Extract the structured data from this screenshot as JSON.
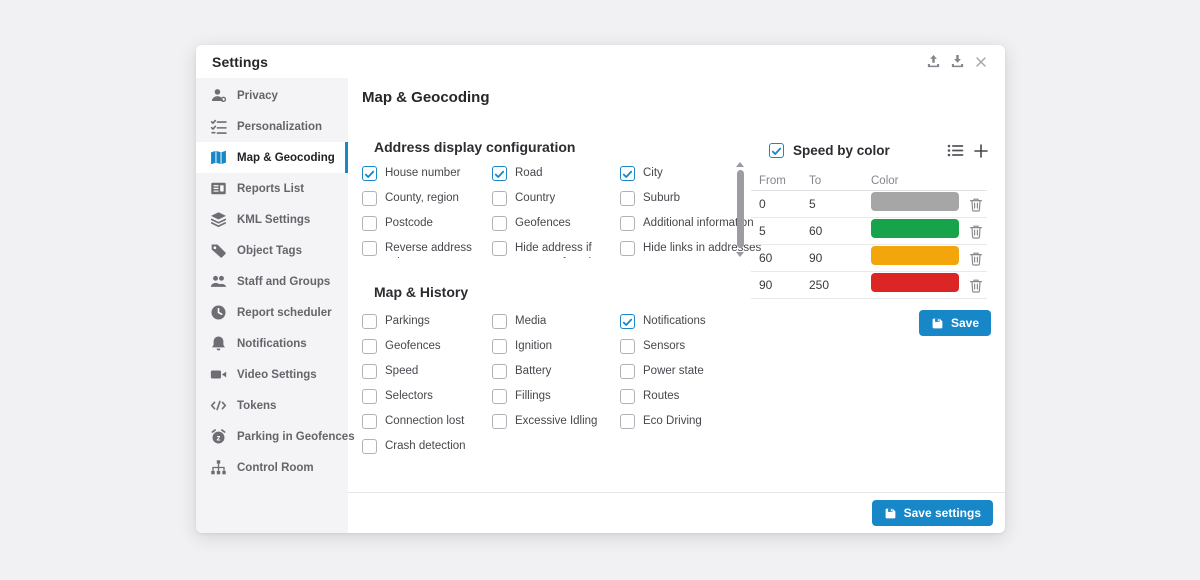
{
  "window": {
    "title": "Settings",
    "toolbar_icons": [
      "upload-icon",
      "download-icon",
      "close-icon"
    ]
  },
  "accent_color": "#1787c8",
  "sidebar": {
    "items": [
      {
        "label": "Privacy",
        "icon": "privacy-user-icon",
        "active": false
      },
      {
        "label": "Personalization",
        "icon": "personalization-checklist-icon",
        "active": false
      },
      {
        "label": "Map & Geocoding",
        "icon": "map-icon",
        "active": true
      },
      {
        "label": "Reports List",
        "icon": "reports-list-icon",
        "active": false
      },
      {
        "label": "KML Settings",
        "icon": "kml-layers-icon",
        "active": false
      },
      {
        "label": "Object Tags",
        "icon": "object-tags-icon",
        "active": false
      },
      {
        "label": "Staff and Groups",
        "icon": "staff-groups-icon",
        "active": false
      },
      {
        "label": "Report scheduler",
        "icon": "report-scheduler-clock-icon",
        "active": false
      },
      {
        "label": "Notifications",
        "icon": "notifications-bell-icon",
        "active": false
      },
      {
        "label": "Video Settings",
        "icon": "video-camera-icon",
        "active": false
      },
      {
        "label": "Tokens",
        "icon": "tokens-code-icon",
        "active": false
      },
      {
        "label": "Parking in Geofences",
        "icon": "parking-alarm-icon",
        "active": false
      },
      {
        "label": "Control Room",
        "icon": "control-room-sitemap-icon",
        "active": false
      }
    ]
  },
  "main": {
    "title": "Map & Geocoding",
    "address_section": {
      "heading": "Address display configuration",
      "columns": [
        [
          {
            "label": "House number",
            "checked": true
          },
          {
            "label": "County, region",
            "checked": false
          },
          {
            "label": "Postcode",
            "checked": false
          },
          {
            "label": "Reverse address values",
            "checked": false
          }
        ],
        [
          {
            "label": "Road",
            "checked": true
          },
          {
            "label": "Country",
            "checked": false
          },
          {
            "label": "Geofences",
            "checked": false
          },
          {
            "label": "Hide address if geozone found",
            "checked": false
          }
        ],
        [
          {
            "label": "City",
            "checked": true
          },
          {
            "label": "Suburb",
            "checked": false
          },
          {
            "label": "Additional information",
            "checked": false
          },
          {
            "label": "Hide links in addresses",
            "checked": false
          }
        ]
      ]
    },
    "map_history_section": {
      "heading": "Map & History",
      "columns": [
        [
          {
            "label": "Parkings",
            "checked": false
          },
          {
            "label": "Geofences",
            "checked": false
          },
          {
            "label": "Speed",
            "checked": false
          },
          {
            "label": "Selectors",
            "checked": false
          },
          {
            "label": "Connection lost",
            "checked": false
          },
          {
            "label": "Crash detection",
            "checked": false
          }
        ],
        [
          {
            "label": "Media",
            "checked": false
          },
          {
            "label": "Ignition",
            "checked": false
          },
          {
            "label": "Battery",
            "checked": false
          },
          {
            "label": "Fillings",
            "checked": false
          },
          {
            "label": "Excessive Idling",
            "checked": false
          }
        ],
        [
          {
            "label": "Notifications",
            "checked": true
          },
          {
            "label": "Sensors",
            "checked": false
          },
          {
            "label": "Power state",
            "checked": false
          },
          {
            "label": "Routes",
            "checked": false
          },
          {
            "label": "Eco Driving",
            "checked": false
          }
        ]
      ]
    },
    "speed_by_color": {
      "label": "Speed by color",
      "checked": true,
      "header_icons": [
        "list-icon",
        "plus-icon"
      ],
      "table": {
        "headers": [
          "From",
          "To",
          "Color"
        ],
        "rows": [
          {
            "from": "0",
            "to": "5",
            "color": "#a6a6a6"
          },
          {
            "from": "5",
            "to": "60",
            "color": "#16a34a"
          },
          {
            "from": "60",
            "to": "90",
            "color": "#f2a60b"
          },
          {
            "from": "90",
            "to": "250",
            "color": "#dc2626"
          }
        ]
      },
      "save_label": "Save"
    },
    "footer": {
      "save_label": "Save settings"
    }
  }
}
